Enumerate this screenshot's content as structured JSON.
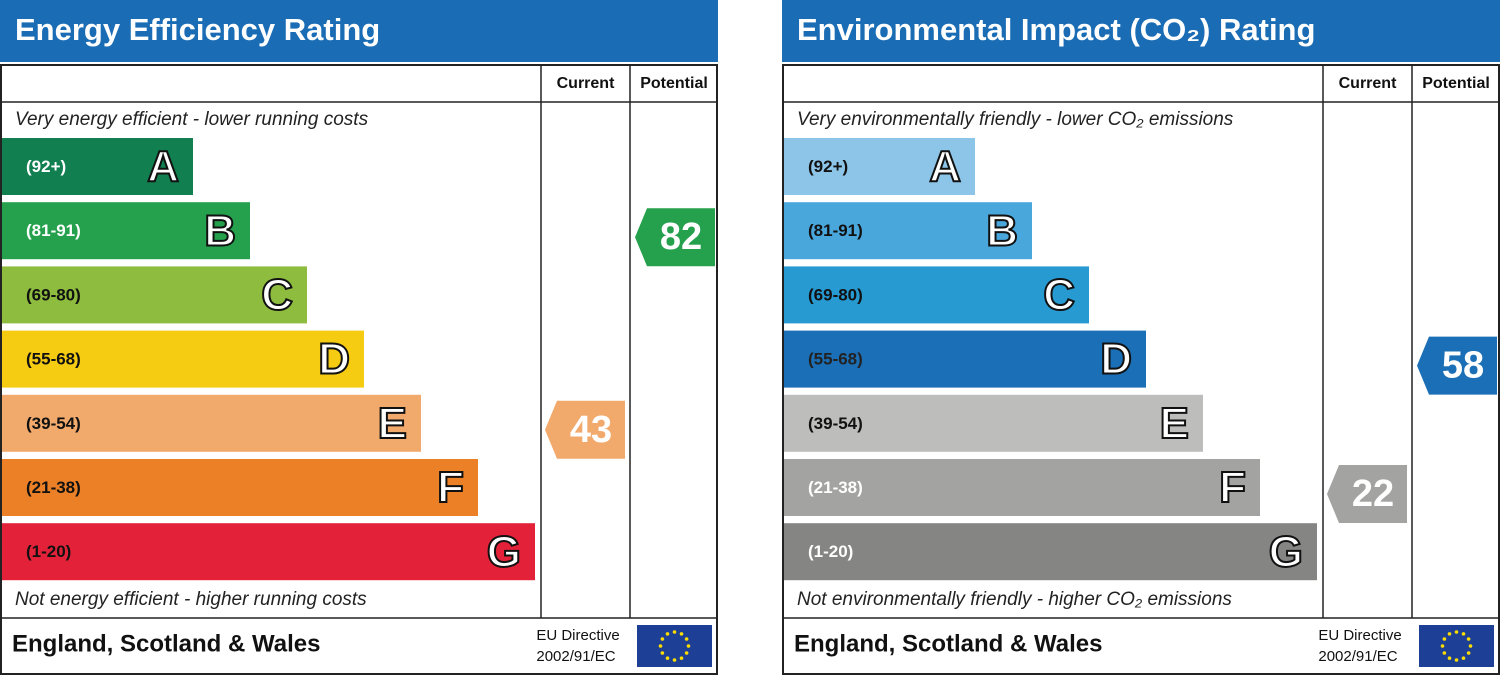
{
  "panels": [
    {
      "title": "Energy Efficiency Rating",
      "columns": [
        "Current",
        "Potential"
      ],
      "top_note": "Very energy efficient - lower running costs",
      "bottom_note": "Not energy efficient - higher running costs",
      "bands": [
        {
          "range": "(92+)",
          "letter": "A",
          "color": "#117f4f",
          "label_color": "#ffffff"
        },
        {
          "range": "(81-91)",
          "letter": "B",
          "color": "#25a14d",
          "label_color": "#ffffff"
        },
        {
          "range": "(69-80)",
          "letter": "C",
          "color": "#8dbc3e",
          "label_color": "#111111"
        },
        {
          "range": "(55-68)",
          "letter": "D",
          "color": "#f6cc13",
          "label_color": "#111111"
        },
        {
          "range": "(39-54)",
          "letter": "E",
          "color": "#f2a96c",
          "label_color": "#111111"
        },
        {
          "range": "(21-38)",
          "letter": "F",
          "color": "#ec8027",
          "label_color": "#111111"
        },
        {
          "range": "(1-20)",
          "letter": "G",
          "color": "#e32239",
          "label_color": "#111111"
        }
      ],
      "current": 43,
      "potential": 82,
      "footer": "England, Scotland & Wales",
      "directive": [
        "EU Directive",
        "2002/91/EC"
      ]
    },
    {
      "title": "Environmental Impact (CO₂) Rating",
      "columns": [
        "Current",
        "Potential"
      ],
      "top_note": "Very environmentally friendly - lower CO₂ emissions",
      "bottom_note": "Not environmentally friendly - higher CO₂ emissions",
      "bands": [
        {
          "range": "(92+)",
          "letter": "A",
          "color": "#8dc5e8",
          "label_color": "#111111"
        },
        {
          "range": "(81-91)",
          "letter": "B",
          "color": "#4aa7dc",
          "label_color": "#111111"
        },
        {
          "range": "(69-80)",
          "letter": "C",
          "color": "#279ad2",
          "label_color": "#111111"
        },
        {
          "range": "(55-68)",
          "letter": "D",
          "color": "#1b6fb6",
          "label_color": "#222222"
        },
        {
          "range": "(39-54)",
          "letter": "E",
          "color": "#bdbdbb",
          "label_color": "#111111"
        },
        {
          "range": "(21-38)",
          "letter": "F",
          "color": "#a3a3a1",
          "label_color": "#ffffff"
        },
        {
          "range": "(1-20)",
          "letter": "G",
          "color": "#858584",
          "label_color": "#ffffff"
        }
      ],
      "current": 22,
      "potential": 58,
      "footer": "England, Scotland & Wales",
      "directive": [
        "EU Directive",
        "2002/91/EC"
      ]
    }
  ]
}
